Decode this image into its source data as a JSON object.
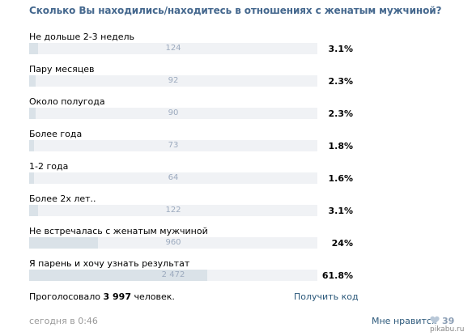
{
  "poll": {
    "title": "Сколько Вы находились/находитесь в отношениях с женатым мужчиной?",
    "options": [
      {
        "label": "Не дольше 2-3 недель",
        "count": "124",
        "percent": "3.1%",
        "fraction": 0.031
      },
      {
        "label": "Пару месяцев",
        "count": "92",
        "percent": "2.3%",
        "fraction": 0.023
      },
      {
        "label": "Около полугода",
        "count": "90",
        "percent": "2.3%",
        "fraction": 0.023
      },
      {
        "label": "Более года",
        "count": "73",
        "percent": "1.8%",
        "fraction": 0.018
      },
      {
        "label": "1-2 года",
        "count": "64",
        "percent": "1.6%",
        "fraction": 0.016
      },
      {
        "label": "Более 2х лет..",
        "count": "122",
        "percent": "3.1%",
        "fraction": 0.031
      },
      {
        "label": "Не встречалась с женатым мужчиной",
        "count": "960",
        "percent": "24%",
        "fraction": 0.24
      },
      {
        "label": "Я парень и хочу узнать результат",
        "count": "2 472",
        "percent": "61.8%",
        "fraction": 0.618
      }
    ],
    "voters_prefix": "Проголосовало",
    "voters_count": "3 997",
    "voters_suffix": "человек.",
    "get_code": "Получить код"
  },
  "footer": {
    "timestamp": "сегодня в 0:46",
    "like_label": "Мне нравится",
    "like_count": "39",
    "icon": "heart-icon",
    "watermark": "pikabu.ru"
  },
  "colors": {
    "title": "#45688e",
    "bar_fill": "#dae2e8",
    "bar_track": "#f0f2f5",
    "link": "#2b587a"
  }
}
